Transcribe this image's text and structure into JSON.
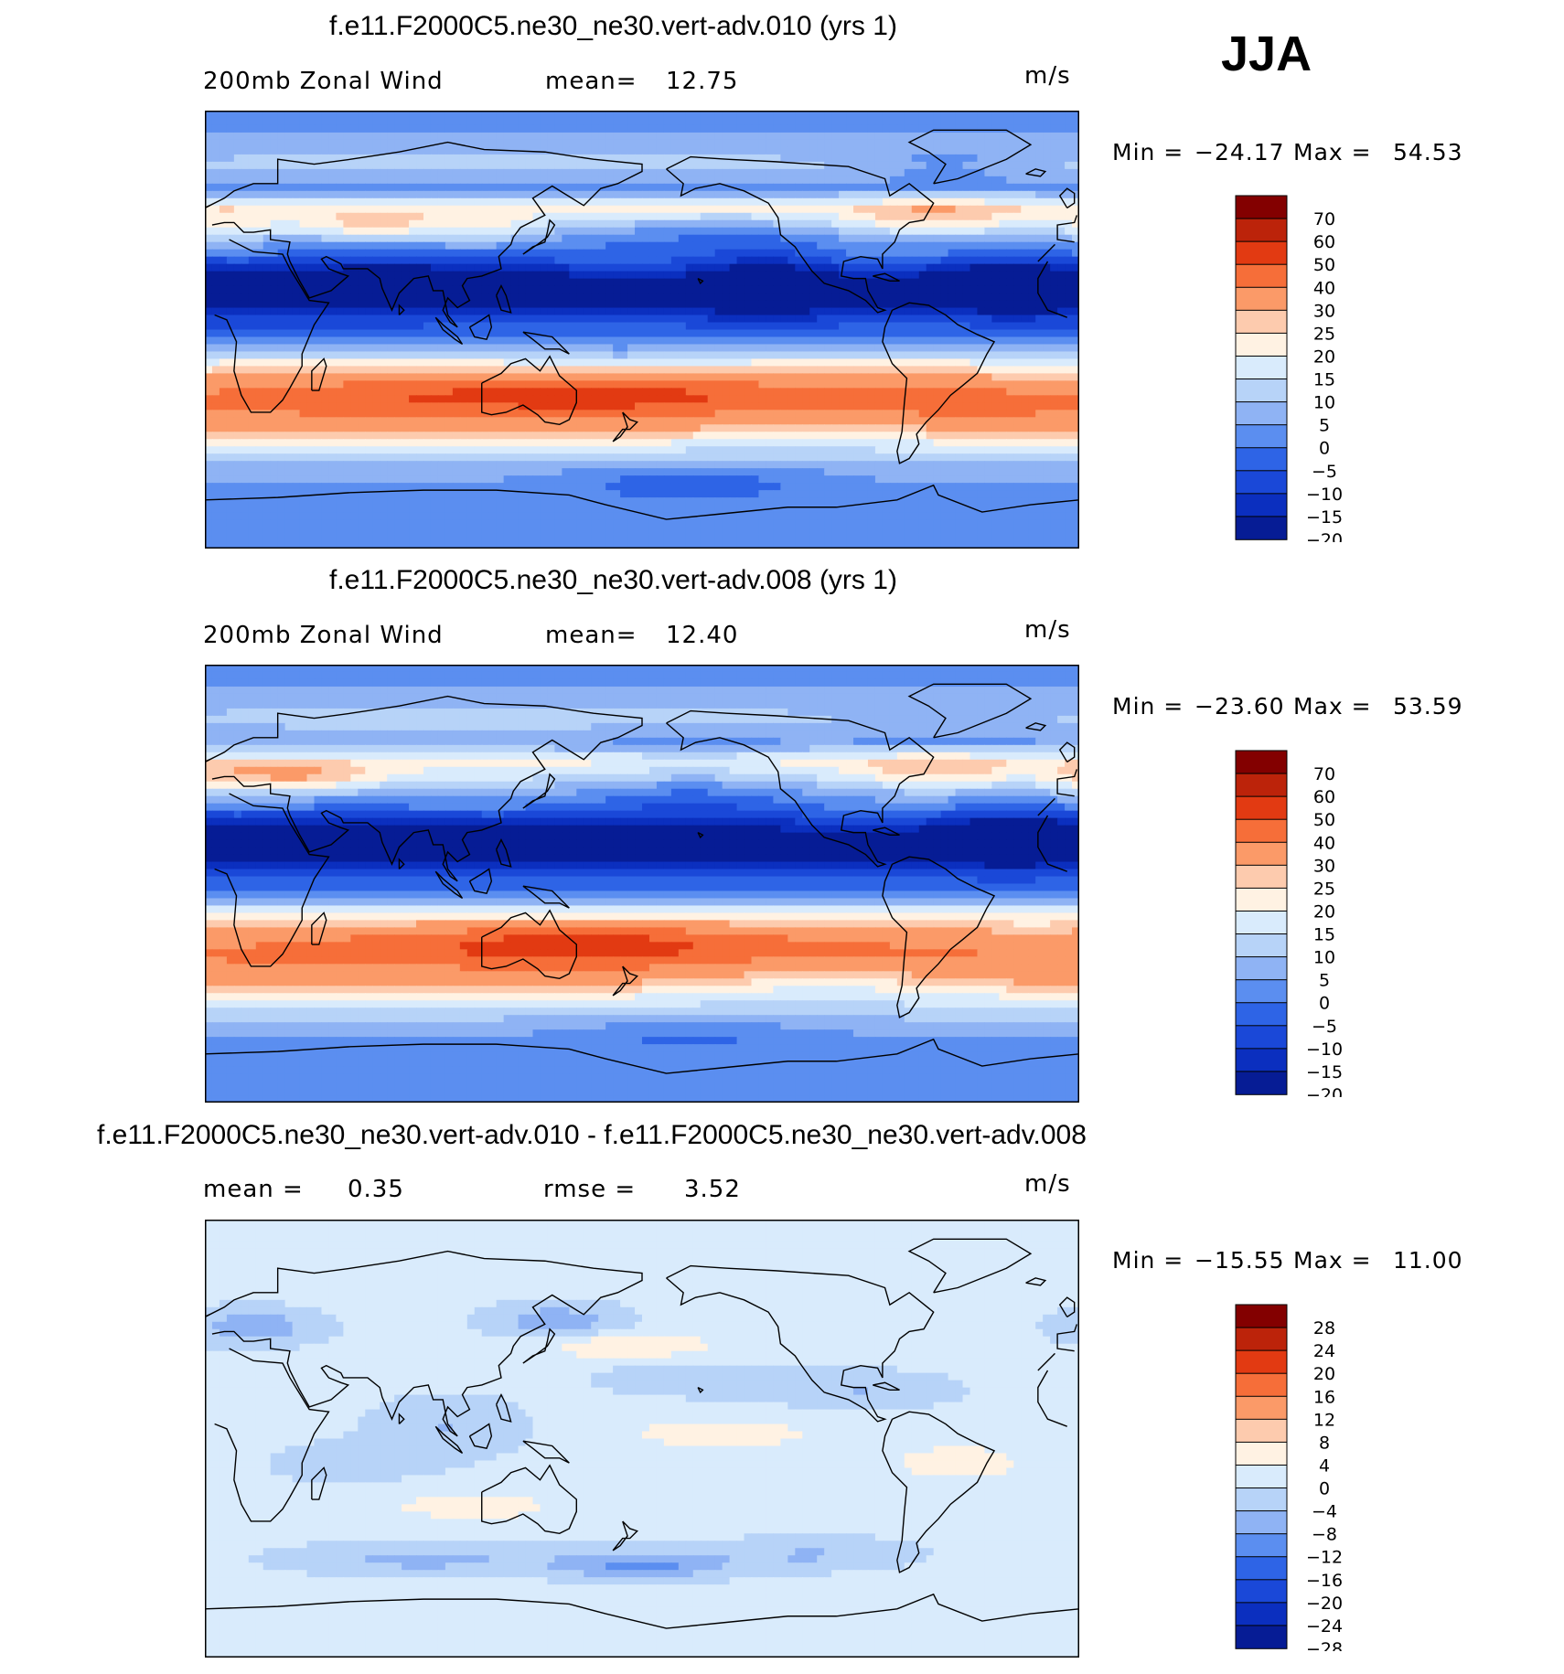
{
  "season": "JJA",
  "panels": [
    {
      "title": "f.e11.F2000C5.ne30_ne30.vert-adv.010 (yrs 1)",
      "left_text": "200mb Zonal Wind",
      "stat1_label": "mean=",
      "stat1_value": "12.75",
      "stat2_label": "",
      "stat2_value": "",
      "units": "m/s",
      "min_label": "Min =",
      "min_value": "−24.17",
      "max_label": "Max =",
      "max_value": "54.53",
      "colorbar": {
        "colors": [
          "#830000",
          "#bc230a",
          "#e23a12",
          "#f66e39",
          "#fb9a68",
          "#fdcbae",
          "#fff2e3",
          "#d9ebfc",
          "#b7d3f8",
          "#8fb3f4",
          "#5b8ef0",
          "#2e64e6",
          "#1a48d8",
          "#0b2fbf",
          "#061c95"
        ],
        "labels": [
          "70",
          "60",
          "50",
          "40",
          "30",
          "25",
          "20",
          "15",
          "10",
          "5",
          "0",
          "−5",
          "−10",
          "−15",
          "−20"
        ]
      },
      "field": {
        "base": [
          [
            90,
            2
          ],
          [
            82,
            5
          ],
          [
            74,
            9
          ],
          [
            67,
            12
          ],
          [
            58,
            4
          ],
          [
            50,
            22
          ],
          [
            45,
            16
          ],
          [
            38,
            8
          ],
          [
            30,
            1
          ],
          [
            23,
            -12
          ],
          [
            17,
            -20
          ],
          [
            10,
            -15
          ],
          [
            3,
            -6
          ],
          [
            -5,
            3
          ],
          [
            -13,
            20
          ],
          [
            -21,
            36
          ],
          [
            -28,
            43
          ],
          [
            -34,
            40
          ],
          [
            -41,
            31
          ],
          [
            -48,
            18
          ],
          [
            -56,
            9
          ],
          [
            -64,
            5
          ],
          [
            -72,
            3
          ],
          [
            -80,
            4
          ],
          [
            -90,
            3
          ]
        ],
        "blobs": [
          {
            "lon": 80,
            "lat": 24,
            "dlon": 45,
            "dlat": 7,
            "amp": -7
          },
          {
            "lon": 50,
            "lat": 15,
            "dlon": 45,
            "dlat": 8,
            "amp": -4
          },
          {
            "lon": 120,
            "lat": -27,
            "dlon": 45,
            "dlat": 5,
            "amp": 10
          },
          {
            "lon": 178,
            "lat": -27,
            "dlon": 35,
            "dlat": 5,
            "amp": 9
          },
          {
            "lon": 300,
            "lat": -28,
            "dlon": 28,
            "dlat": 5,
            "amp": 5
          },
          {
            "lon": 65,
            "lat": 43,
            "dlon": 20,
            "dlat": 4,
            "amp": 12
          },
          {
            "lon": 10,
            "lat": 43,
            "dlon": 14,
            "dlat": 5,
            "amp": 8
          },
          {
            "lon": 112,
            "lat": 42,
            "dlon": 20,
            "dlat": 5,
            "amp": 10
          },
          {
            "lon": 300,
            "lat": 46,
            "dlon": 25,
            "dlat": 5,
            "amp": 12
          },
          {
            "lon": 195,
            "lat": 38,
            "dlon": 45,
            "dlat": 6,
            "amp": -7
          },
          {
            "lon": 230,
            "lat": 20,
            "dlon": 18,
            "dlat": 12,
            "amp": -10
          },
          {
            "lon": 330,
            "lat": 20,
            "dlon": 20,
            "dlat": 8,
            "amp": -12
          },
          {
            "lon": 305,
            "lat": 68,
            "dlon": 30,
            "dlat": 5,
            "amp": -7
          },
          {
            "lon": 200,
            "lat": -62,
            "dlon": 40,
            "dlat": 6,
            "amp": -8
          },
          {
            "lon": 340,
            "lat": -20,
            "dlon": 18,
            "dlat": 5,
            "amp": -6
          },
          {
            "lon": 170,
            "lat": -12,
            "dlon": 30,
            "dlat": 5,
            "amp": -5
          },
          {
            "lon": 250,
            "lat": -40,
            "dlon": 30,
            "dlat": 6,
            "amp": -6
          }
        ]
      }
    },
    {
      "title": "f.e11.F2000C5.ne30_ne30.vert-adv.008 (yrs 1)",
      "left_text": "200mb Zonal Wind",
      "stat1_label": "mean=",
      "stat1_value": "12.40",
      "stat2_label": "",
      "stat2_value": "",
      "units": "m/s",
      "min_label": "Min =",
      "min_value": "−23.60",
      "max_label": "Max =",
      "max_value": "53.59",
      "colorbar": {
        "colors": [
          "#830000",
          "#bc230a",
          "#e23a12",
          "#f66e39",
          "#fb9a68",
          "#fdcbae",
          "#fff2e3",
          "#d9ebfc",
          "#b7d3f8",
          "#8fb3f4",
          "#5b8ef0",
          "#2e64e6",
          "#1a48d8",
          "#0b2fbf",
          "#061c95"
        ],
        "labels": [
          "70",
          "60",
          "50",
          "40",
          "30",
          "25",
          "20",
          "15",
          "10",
          "5",
          "0",
          "−5",
          "−10",
          "−15",
          "−20"
        ]
      },
      "field": {
        "base": [
          [
            90,
            2
          ],
          [
            82,
            5
          ],
          [
            74,
            9
          ],
          [
            67,
            12
          ],
          [
            58,
            5
          ],
          [
            50,
            22
          ],
          [
            45,
            18
          ],
          [
            38,
            9
          ],
          [
            30,
            1
          ],
          [
            23,
            -12
          ],
          [
            17,
            -20
          ],
          [
            10,
            -15
          ],
          [
            3,
            -6
          ],
          [
            -5,
            3
          ],
          [
            -13,
            22
          ],
          [
            -21,
            37
          ],
          [
            -28,
            42
          ],
          [
            -34,
            39
          ],
          [
            -41,
            30
          ],
          [
            -48,
            18
          ],
          [
            -56,
            10
          ],
          [
            -64,
            5
          ],
          [
            -72,
            3
          ],
          [
            -80,
            4
          ],
          [
            -90,
            3
          ]
        ],
        "blobs": [
          {
            "lon": 60,
            "lat": 22,
            "dlon": 45,
            "dlat": 7,
            "amp": -7
          },
          {
            "lon": 150,
            "lat": 18,
            "dlon": 30,
            "dlat": 6,
            "amp": -6
          },
          {
            "lon": 135,
            "lat": -25,
            "dlon": 40,
            "dlat": 5,
            "amp": 12
          },
          {
            "lon": 180,
            "lat": -25,
            "dlon": 35,
            "dlat": 5,
            "amp": 8
          },
          {
            "lon": 40,
            "lat": 44,
            "dlon": 22,
            "dlat": 4,
            "amp": 14
          },
          {
            "lon": 5,
            "lat": 43,
            "dlon": 14,
            "dlat": 5,
            "amp": 8
          },
          {
            "lon": 300,
            "lat": 46,
            "dlon": 22,
            "dlat": 5,
            "amp": 10
          },
          {
            "lon": 200,
            "lat": 35,
            "dlon": 35,
            "dlat": 10,
            "amp": -9
          },
          {
            "lon": 330,
            "lat": 20,
            "dlon": 20,
            "dlat": 8,
            "amp": -12
          },
          {
            "lon": 305,
            "lat": 68,
            "dlon": 30,
            "dlat": 5,
            "amp": -6
          },
          {
            "lon": 200,
            "lat": -62,
            "dlon": 40,
            "dlat": 6,
            "amp": -6
          },
          {
            "lon": 340,
            "lat": -22,
            "dlon": 18,
            "dlat": 5,
            "amp": -7
          },
          {
            "lon": 255,
            "lat": -40,
            "dlon": 35,
            "dlat": 6,
            "amp": -8
          }
        ]
      }
    },
    {
      "title": "f.e11.F2000C5.ne30_ne30.vert-adv.010 - f.e11.F2000C5.ne30_ne30.vert-adv.008",
      "left_text": "",
      "stat1_label": "mean =",
      "stat1_value": "0.35",
      "stat2_label": "rmse =",
      "stat2_value": "3.52",
      "units": "m/s",
      "min_label": "Min =",
      "min_value": "−15.55",
      "max_label": "Max =",
      "max_value": "11.00",
      "colorbar": {
        "colors": [
          "#830000",
          "#bc230a",
          "#e23a12",
          "#f66e39",
          "#fb9a68",
          "#fdcbae",
          "#fff2e3",
          "#d9ebfc",
          "#b7d3f8",
          "#8fb3f4",
          "#5b8ef0",
          "#2e64e6",
          "#1a48d8",
          "#0b2fbf",
          "#061c95"
        ],
        "labels": [
          "28",
          "24",
          "20",
          "16",
          "12",
          "8",
          "4",
          "0",
          "−4",
          "−8",
          "−12",
          "−16",
          "−20",
          "−24",
          "−28"
        ]
      },
      "field": {
        "base": [
          [
            90,
            0.5
          ],
          [
            70,
            0.5
          ],
          [
            55,
            1
          ],
          [
            40,
            1
          ],
          [
            20,
            1
          ],
          [
            0,
            1
          ],
          [
            -20,
            1
          ],
          [
            -40,
            0.5
          ],
          [
            -60,
            1
          ],
          [
            -90,
            0.5
          ]
        ],
        "blobs": [
          {
            "lon": 20,
            "lat": 46,
            "dlon": 18,
            "dlat": 5,
            "amp": -8
          },
          {
            "lon": 145,
            "lat": 48,
            "dlon": 18,
            "dlat": 5,
            "amp": -8
          },
          {
            "lon": 175,
            "lat": 38,
            "dlon": 25,
            "dlat": 4,
            "amp": 7
          },
          {
            "lon": 212,
            "lat": 2,
            "dlon": 25,
            "dlat": 4,
            "amp": 7
          },
          {
            "lon": 100,
            "lat": 5,
            "dlon": 20,
            "dlat": 8,
            "amp": -5
          },
          {
            "lon": 180,
            "lat": -52,
            "dlon": 25,
            "dlat": 4,
            "amp": -10
          },
          {
            "lon": 90,
            "lat": -50,
            "dlon": 35,
            "dlat": 4,
            "amp": -6
          },
          {
            "lon": 250,
            "lat": -48,
            "dlon": 25,
            "dlat": 4,
            "amp": -5
          },
          {
            "lon": 110,
            "lat": -28,
            "dlon": 30,
            "dlat": 5,
            "amp": 5
          },
          {
            "lon": 310,
            "lat": -10,
            "dlon": 30,
            "dlat": 8,
            "amp": 4
          },
          {
            "lon": 270,
            "lat": 20,
            "dlon": 25,
            "dlat": 5,
            "amp": -5
          },
          {
            "lon": 200,
            "lat": 25,
            "dlon": 25,
            "dlat": 5,
            "amp": -4
          },
          {
            "lon": 60,
            "lat": -10,
            "dlon": 25,
            "dlat": 6,
            "amp": -3
          }
        ]
      }
    }
  ]
}
